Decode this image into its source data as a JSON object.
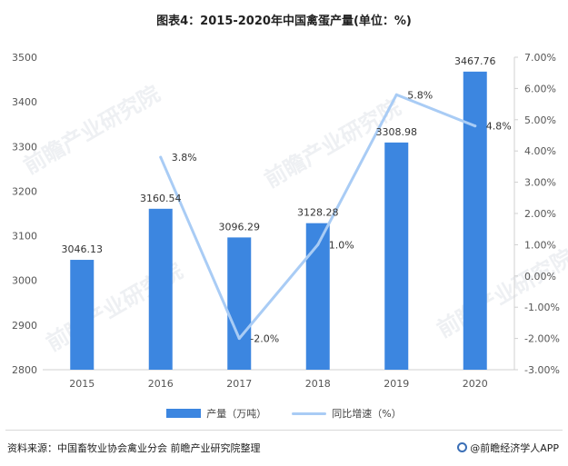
{
  "title": "图表4：2015-2020年中国禽蛋产量(单位：%)",
  "chart_data": {
    "type": "bar+line",
    "categories": [
      "2015",
      "2016",
      "2017",
      "2018",
      "2019",
      "2020"
    ],
    "series": [
      {
        "name": "产量（万吨）",
        "type": "bar",
        "axis": "left",
        "values": [
          3046.13,
          3160.54,
          3096.29,
          3128.28,
          3308.98,
          3467.76
        ],
        "labels": [
          "3046.13",
          "3160.54",
          "3096.29",
          "3128.28",
          "3308.98",
          "3467.76"
        ]
      },
      {
        "name": "同比增速（%）",
        "type": "line",
        "axis": "right",
        "x": [
          "2016",
          "2017",
          "2018",
          "2019",
          "2020"
        ],
        "values": [
          3.8,
          -2.0,
          1.0,
          5.8,
          4.8
        ],
        "labels": [
          "3.8%",
          "-2.0%",
          "1.0%",
          "5.8%",
          "4.8%"
        ]
      }
    ],
    "y_left": {
      "min": 2800,
      "max": 3500,
      "ticks": [
        "2800",
        "2900",
        "3000",
        "3100",
        "3200",
        "3300",
        "3400",
        "3500"
      ]
    },
    "y_right": {
      "min": -3,
      "max": 7,
      "ticks": [
        "-3.00%",
        "-2.00%",
        "-1.00%",
        "0.00%",
        "1.00%",
        "2.00%",
        "3.00%",
        "4.00%",
        "5.00%",
        "6.00%",
        "7.00%"
      ]
    },
    "legend_position": "bottom",
    "grid": false,
    "colors": {
      "bar": "#3c86e0",
      "line": "#a9ccf5"
    }
  },
  "watermark": "前瞻产业研究院",
  "source": "资料来源：中国畜牧业协会禽业分会 前瞻产业研究院整理",
  "brand": "@前瞻经济学人APP"
}
